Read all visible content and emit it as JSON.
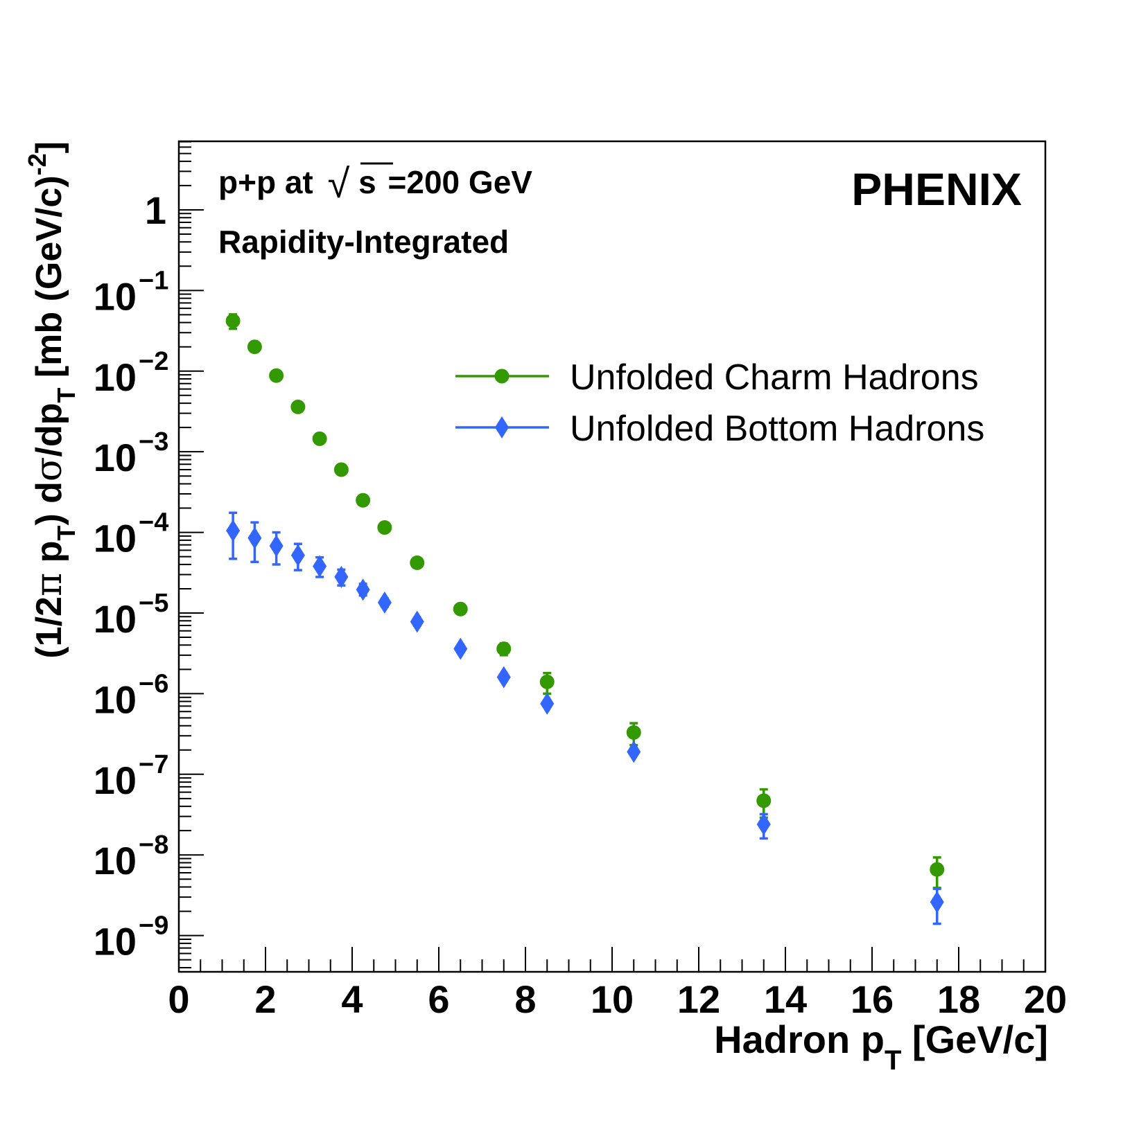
{
  "chart_data": {
    "type": "scatter",
    "experiment_label": "PHENIX",
    "annotation_line1_prefix": "p+p at",
    "annotation_sqrt_symbol": "√",
    "annotation_sqrt_arg": "s",
    "annotation_line1_suffix": "=200 GeV",
    "annotation_line2": "Rapidity-Integrated",
    "xlabel_main": "Hadron p",
    "xlabel_sub": "T",
    "xlabel_tail": " [GeV/c]",
    "ylabel_parts": [
      "(1/2",
      "π",
      " p",
      "T",
      ") d",
      "σ",
      "/dp",
      "T",
      " [mb (GeV/c)",
      "-2",
      "]"
    ],
    "xlim": [
      0,
      20
    ],
    "ylim_log10": [
      -9.45,
      0.85
    ],
    "yscale": "log",
    "xticks": [
      0,
      2,
      4,
      6,
      8,
      10,
      12,
      14,
      16,
      18,
      20
    ],
    "xtick_labels": [
      "0",
      "2",
      "4",
      "6",
      "8",
      "10",
      "12",
      "14",
      "16",
      "18",
      "20"
    ],
    "yticks_log10": [
      0,
      -1,
      -2,
      -3,
      -4,
      -5,
      -6,
      -7,
      -8,
      -9
    ],
    "ytick_label_one": "1",
    "ytick_base": "10",
    "ytick_exponents": [
      "",
      "−1",
      "−2",
      "−3",
      "−4",
      "−5",
      "−6",
      "−7",
      "−8",
      "−9"
    ],
    "legend_position": "upper right",
    "series": [
      {
        "name": "Unfolded Charm Hadrons",
        "color": "#339900",
        "marker": "circle",
        "x": [
          1.25,
          1.75,
          2.25,
          2.75,
          3.25,
          3.75,
          4.25,
          4.75,
          5.5,
          6.5,
          7.5,
          8.5,
          10.5,
          13.5,
          17.5
        ],
        "y": [
          0.042,
          0.02,
          0.0088,
          0.0036,
          0.00145,
          0.0006,
          0.00025,
          0.000115,
          4.2e-05,
          1.12e-05,
          3.6e-06,
          1.4e-06,
          3.3e-07,
          4.7e-08,
          6.6e-09
        ],
        "yerr_low": [
          0.0085,
          0.0015,
          0.0006,
          0.0002,
          8e-05,
          3e-05,
          1.2e-05,
          5e-06,
          2e-06,
          6e-07,
          6e-07,
          4e-07,
          1e-07,
          1.8e-08,
          2.7e-09
        ],
        "yerr_high": [
          0.0085,
          0.0015,
          0.0006,
          0.0002,
          8e-05,
          3e-05,
          1.2e-05,
          5e-06,
          2e-06,
          6e-07,
          6e-07,
          4e-07,
          1e-07,
          1.8e-08,
          2.7e-09
        ]
      },
      {
        "name": "Unfolded Bottom Hadrons",
        "color": "#3366ff",
        "marker": "diamond",
        "x": [
          1.25,
          1.75,
          2.25,
          2.75,
          3.25,
          3.75,
          4.25,
          4.75,
          5.5,
          6.5,
          7.5,
          8.5,
          10.5,
          13.5,
          17.5
        ],
        "y": [
          0.000105,
          8.5e-05,
          6.8e-05,
          5.2e-05,
          3.8e-05,
          2.8e-05,
          1.95e-05,
          1.35e-05,
          7.8e-06,
          3.6e-06,
          1.6e-06,
          7.5e-07,
          1.9e-07,
          2.4e-08,
          2.6e-09
        ],
        "yerr_low": [
          5.8e-05,
          4.2e-05,
          2.8e-05,
          1.8e-05,
          1e-05,
          6e-06,
          3e-06,
          1.5e-06,
          8e-07,
          3e-07,
          1.5e-07,
          6e-08,
          1.5e-08,
          8e-09,
          1.2e-09
        ],
        "yerr_high": [
          7e-05,
          4.8e-05,
          3.2e-05,
          2e-05,
          1.1e-05,
          6.5e-06,
          3.5e-06,
          1.6e-06,
          9e-07,
          3e-07,
          1.5e-07,
          6e-08,
          1.5e-08,
          8e-09,
          1.2e-09
        ]
      }
    ]
  }
}
